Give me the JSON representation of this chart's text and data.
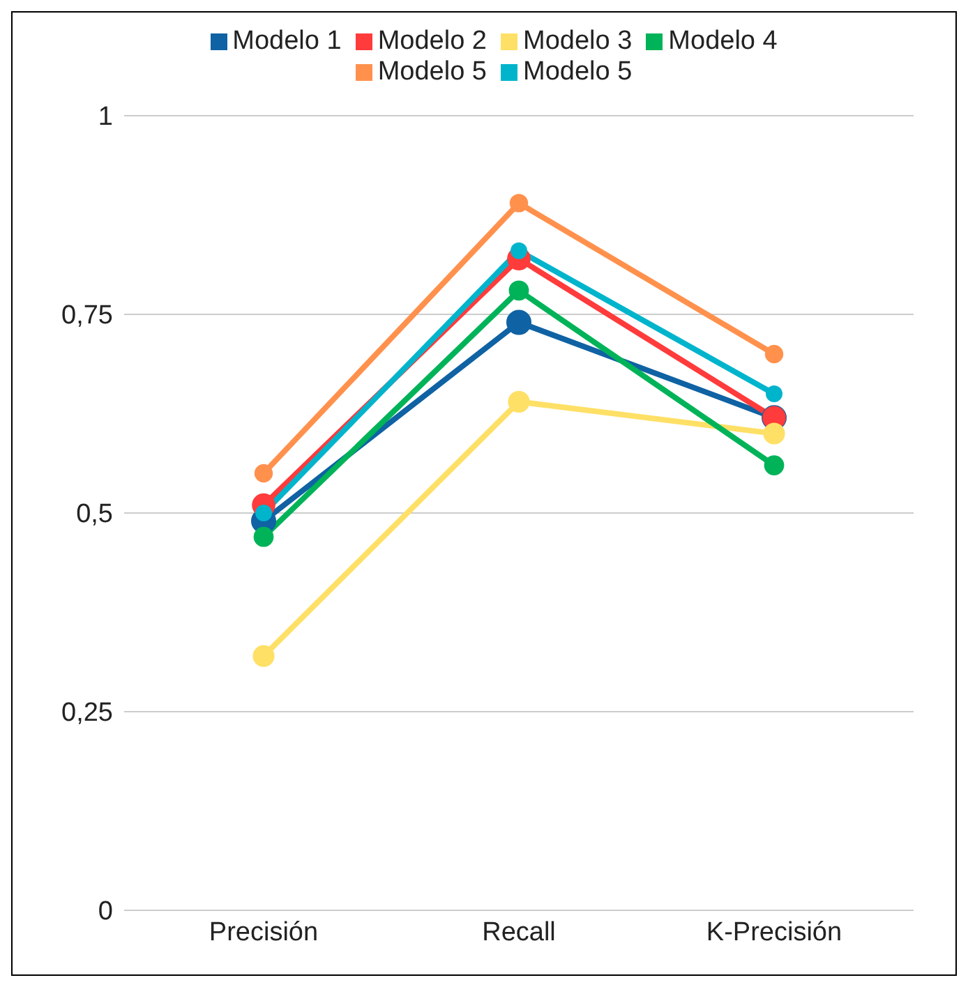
{
  "chart_data": {
    "type": "line",
    "categories": [
      "Precisión",
      "Recall",
      "K-Precisión"
    ],
    "series": [
      {
        "name": "Modelo 1",
        "color": "#0f62a3",
        "values": [
          0.49,
          0.74,
          0.62
        ]
      },
      {
        "name": "Modelo 2",
        "color": "#ff3b3b",
        "values": [
          0.51,
          0.82,
          0.62
        ]
      },
      {
        "name": "Modelo 3",
        "color": "#ffe066",
        "values": [
          0.32,
          0.64,
          0.6
        ]
      },
      {
        "name": "Modelo 4",
        "color": "#00b359",
        "values": [
          0.47,
          0.78,
          0.56
        ]
      },
      {
        "name": "Modelo 5",
        "color": "#ff914d",
        "values": [
          0.55,
          0.89,
          0.7
        ]
      },
      {
        "name": "Modelo 5",
        "color": "#00b4cc",
        "values": [
          0.5,
          0.83,
          0.65
        ]
      }
    ],
    "ylim": [
      0,
      1
    ],
    "yticks": [
      {
        "value": 0,
        "label": "0"
      },
      {
        "value": 0.25,
        "label": "0,25"
      },
      {
        "value": 0.5,
        "label": "0,5"
      },
      {
        "value": 0.75,
        "label": "0,75"
      },
      {
        "value": 1,
        "label": "1"
      }
    ],
    "grid": "y",
    "legend": "top",
    "marker": "circle",
    "line_style": "solid"
  }
}
